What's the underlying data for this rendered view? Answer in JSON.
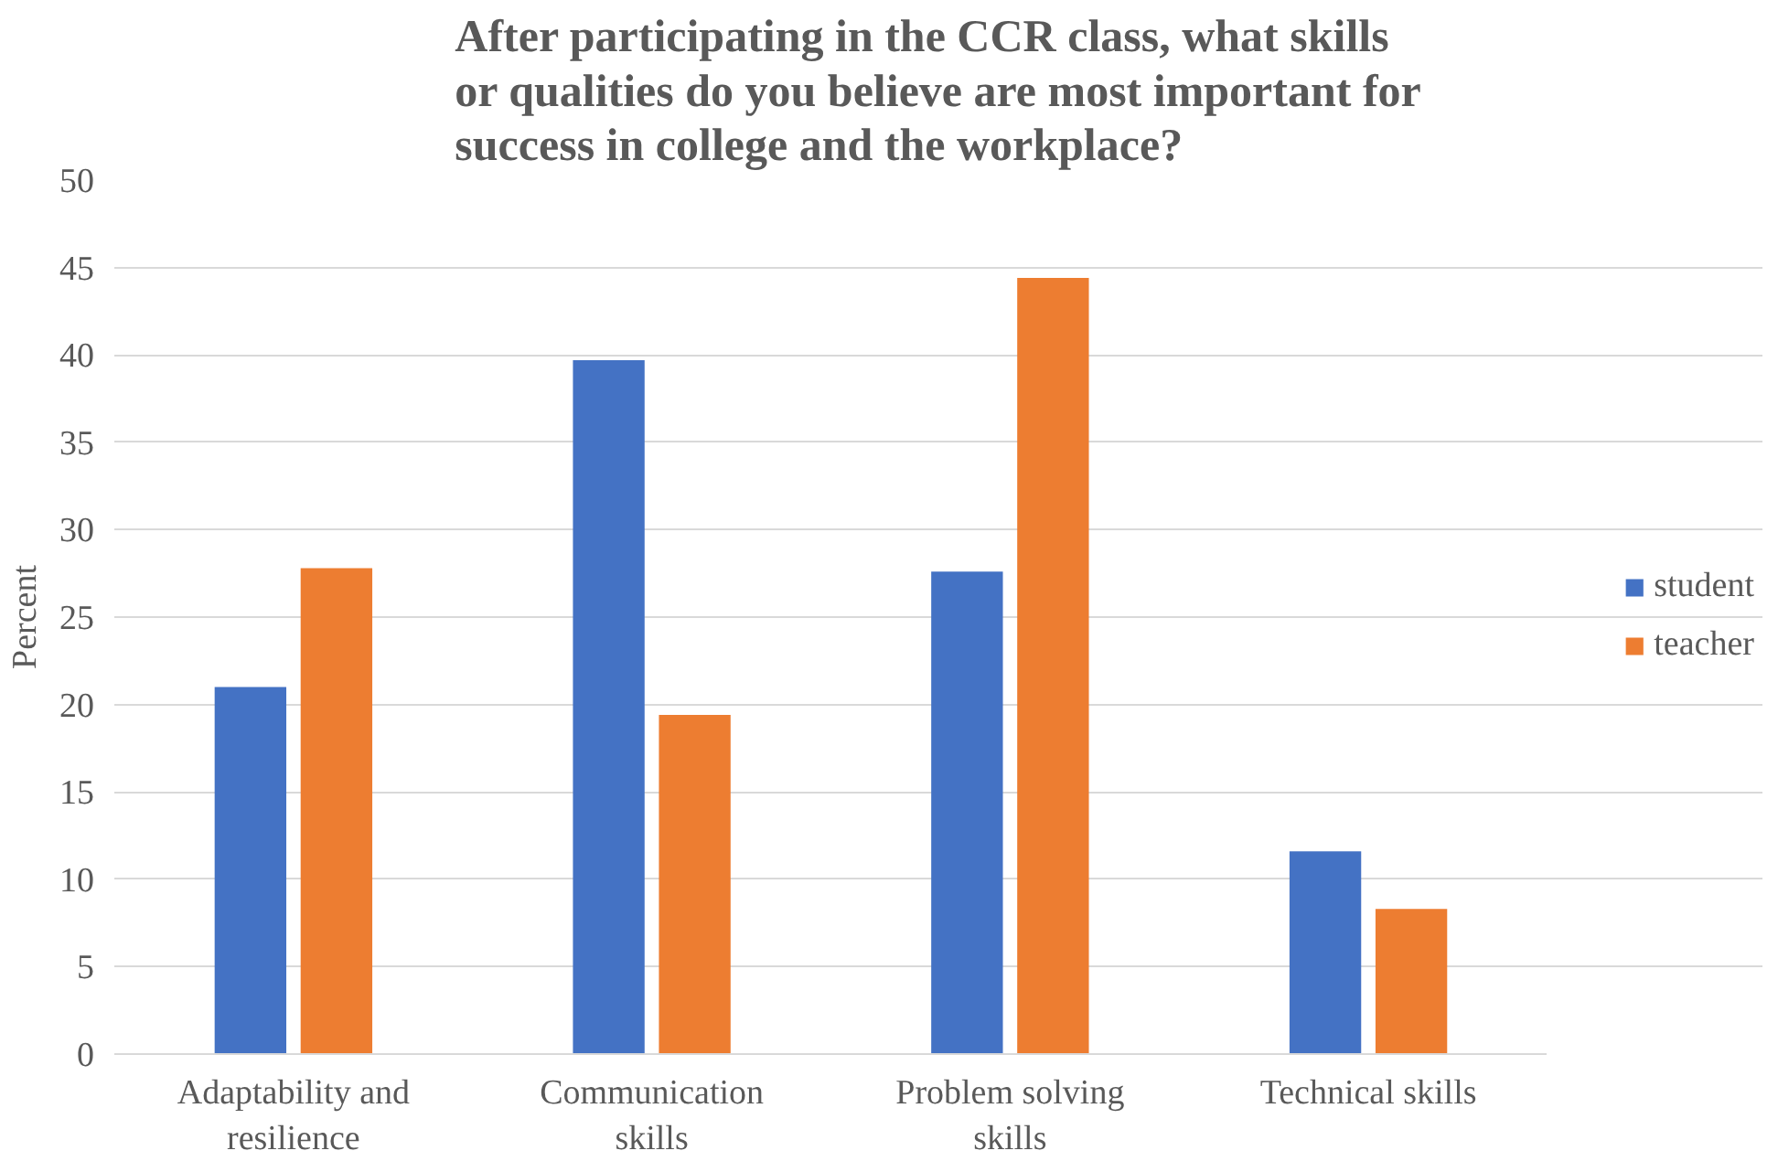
{
  "chart_data": {
    "type": "bar",
    "title": "After participating in the CCR class, what skills or qualities do you believe are most important for success in college and the workplace?",
    "ylabel": "Percent",
    "categories": [
      "Adaptability and resilience",
      "Communication skills",
      "Problem solving skills",
      "Technical skills"
    ],
    "series": [
      {
        "name": "student",
        "color": "#4472c4",
        "values": [
          21.0,
          39.7,
          27.6,
          11.6
        ]
      },
      {
        "name": "teacher",
        "color": "#ed7d31",
        "values": [
          27.8,
          19.4,
          44.4,
          8.3
        ]
      }
    ],
    "ylim": [
      0,
      50
    ],
    "yticks": [
      0,
      5,
      10,
      15,
      20,
      25,
      30,
      35,
      40,
      45,
      50
    ],
    "grid": "y",
    "legend": "right"
  }
}
